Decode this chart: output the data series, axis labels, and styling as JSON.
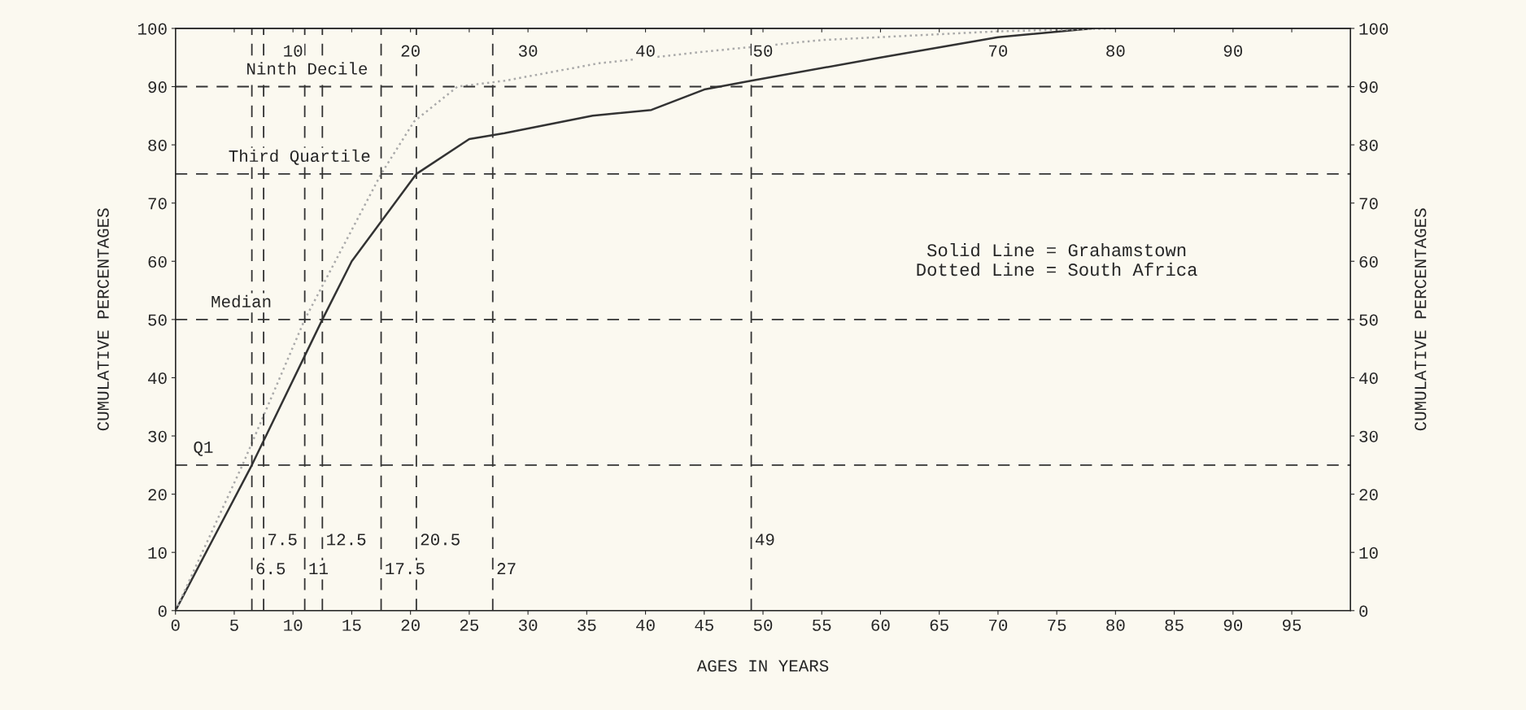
{
  "chart_data": {
    "type": "line",
    "xlabel": "AGES IN YEARS",
    "ylabel": "CUMULATIVE PERCENTAGES",
    "y2label": "CUMULATIVE PERCENTAGES",
    "xlim": [
      0,
      100
    ],
    "xticks": [
      0,
      5,
      10,
      15,
      20,
      25,
      30,
      35,
      40,
      45,
      50,
      55,
      60,
      65,
      70,
      75,
      80,
      85,
      90,
      95
    ],
    "x2lim": [
      0,
      100
    ],
    "x2ticks": [
      {
        "value": 5,
        "label": null
      },
      10,
      {
        "value": 15,
        "label": null
      },
      20,
      {
        "value": 25,
        "label": null
      },
      30,
      {
        "value": 35,
        "label": null
      },
      40,
      {
        "value": 45,
        "label": null
      },
      50,
      {
        "value": 55,
        "label": null
      },
      {
        "value": 60,
        "label": null
      },
      {
        "value": 65,
        "label": null
      },
      70,
      {
        "value": 75,
        "label": null
      },
      80,
      {
        "value": 85,
        "label": null
      },
      90,
      {
        "value": 95,
        "label": null
      }
    ],
    "ylim": [
      0,
      100
    ],
    "yticks": [
      0,
      10,
      20,
      30,
      40,
      50,
      60,
      70,
      80,
      90,
      100
    ],
    "y2lim": [
      0,
      100
    ],
    "y2ticks": [
      0,
      10,
      20,
      30,
      40,
      50,
      60,
      70,
      80,
      90,
      100
    ],
    "grid": false,
    "marker": "none",
    "series": [
      {
        "color": "#333333",
        "line_style": "solid",
        "x": [
          0,
          6.5,
          12.5,
          15,
          20.5,
          25,
          28,
          35.5,
          40.5,
          45,
          49,
          60,
          70,
          78
        ],
        "values": [
          0,
          25,
          50,
          60,
          75,
          81,
          82,
          85,
          86,
          89.5,
          91,
          95,
          98.5,
          100
        ]
      },
      {
        "color": "#aaaaaa",
        "line_style": "dotted",
        "x": [
          0,
          5.7,
          11,
          17.5,
          20.3,
          24,
          28,
          36,
          45,
          55,
          70,
          80
        ],
        "values": [
          0,
          25,
          50,
          75,
          84,
          90,
          91,
          94,
          96,
          98,
          99.5,
          100
        ]
      }
    ],
    "ref_lines": [
      {
        "axis": "y",
        "value": 25,
        "label": "Q1",
        "line_style": "dashed",
        "color": "#333333"
      },
      {
        "axis": "y",
        "value": 50,
        "label": "Median",
        "line_style": "dashed",
        "color": "#333333"
      },
      {
        "axis": "y",
        "value": 75,
        "label": "Third Quartile",
        "line_style": "dashed",
        "color": "#333333"
      },
      {
        "axis": "y",
        "value": 90,
        "label": "Ninth Decile",
        "line_style": "dashed",
        "color": "#333333"
      },
      {
        "axis": "x",
        "value": 6.5,
        "label": "6.5",
        "line_style": "dashed",
        "color": "#333333"
      },
      {
        "axis": "x",
        "value": 7.5,
        "label": "7.5",
        "line_style": "dashed",
        "color": "#333333"
      },
      {
        "axis": "x",
        "value": 11,
        "label": "11",
        "line_style": "dashed",
        "color": "#333333"
      },
      {
        "axis": "x",
        "value": 12.5,
        "label": "12.5",
        "line_style": "dashed",
        "color": "#333333"
      },
      {
        "axis": "x",
        "value": 17.5,
        "label": "17.5",
        "line_style": "dashed",
        "color": "#333333"
      },
      {
        "axis": "x",
        "value": 20.5,
        "label": "20.5",
        "line_style": "dashed",
        "color": "#333333"
      },
      {
        "axis": "x",
        "value": 27,
        "label": "27",
        "line_style": "dashed",
        "color": "#333333"
      },
      {
        "axis": "x",
        "value": 49,
        "label": "49",
        "line_style": "dashed",
        "color": "#333333"
      }
    ],
    "annotations": [
      "Solid Line = Grahamstown\nDotted Line = South Africa"
    ]
  }
}
